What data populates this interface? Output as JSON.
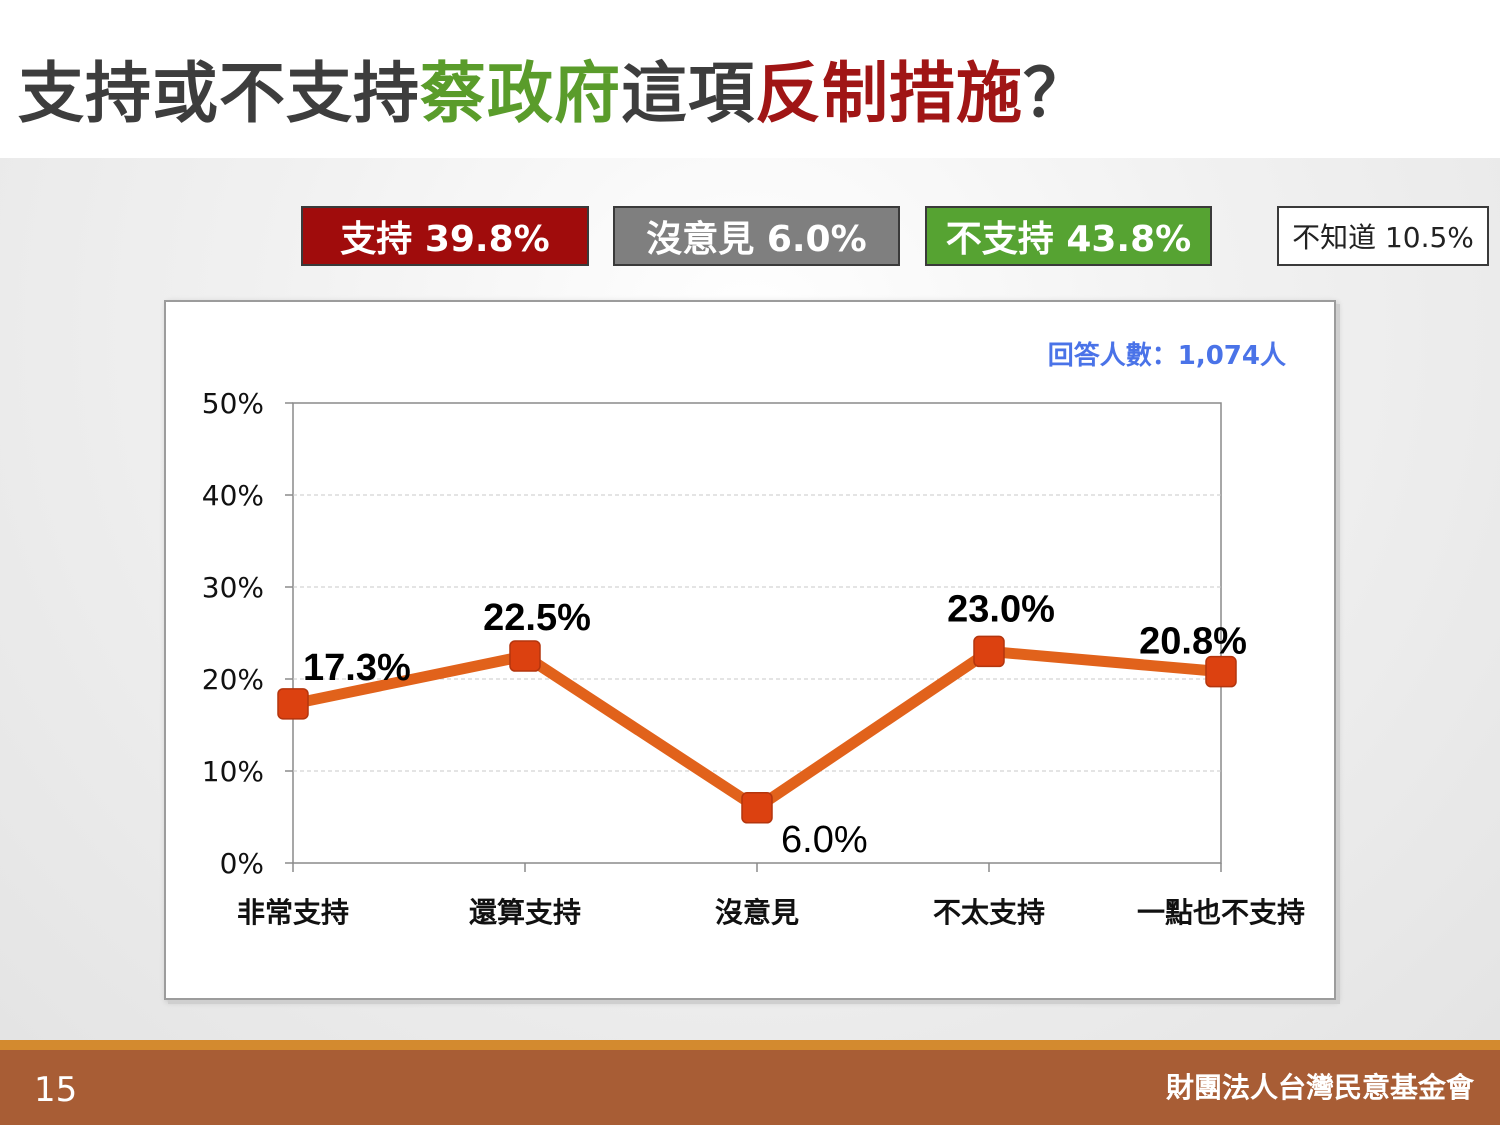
{
  "slide": {
    "title_parts": [
      {
        "text": "支持或不支持",
        "color": "#3d3d3d"
      },
      {
        "text": "蔡政府",
        "color": "#5a9c2b"
      },
      {
        "text": "這項",
        "color": "#3d3d3d"
      },
      {
        "text": "反制措施",
        "color": "#a01515"
      },
      {
        "text": "？",
        "color": "#3d3d3d"
      }
    ],
    "page_number": "15",
    "organization": "財團法人台灣民意基金會"
  },
  "summary": [
    {
      "label": "支持 39.8%",
      "bg": "#a00c0c",
      "text_color": "#ffffff"
    },
    {
      "label": "沒意見 6.0%",
      "bg": "#7f7f7f",
      "text_color": "#ffffff"
    },
    {
      "label": "不支持 43.8%",
      "bg": "#56a332",
      "text_color": "#ffffff"
    },
    {
      "label": "不知道 10.5%",
      "bg": "#ffffff",
      "text_color": "#222222"
    }
  ],
  "chart_data": {
    "type": "line",
    "categories": [
      "非常支持",
      "還算支持",
      "沒意見",
      "不太支持",
      "一點也不支持"
    ],
    "values": [
      17.3,
      22.5,
      6.0,
      23.0,
      20.8
    ],
    "data_labels": [
      "17.3%",
      "22.5%",
      "6.0%",
      "23.0%",
      "20.8%"
    ],
    "y_ticks": [
      "0%",
      "10%",
      "20%",
      "30%",
      "40%",
      "50%"
    ],
    "ylim": [
      0,
      50
    ],
    "note": "回答人數：1,074人",
    "line_color": "#e1621b",
    "marker_color": "#dc4110",
    "note_color": "#4a73e8",
    "grid": true
  }
}
